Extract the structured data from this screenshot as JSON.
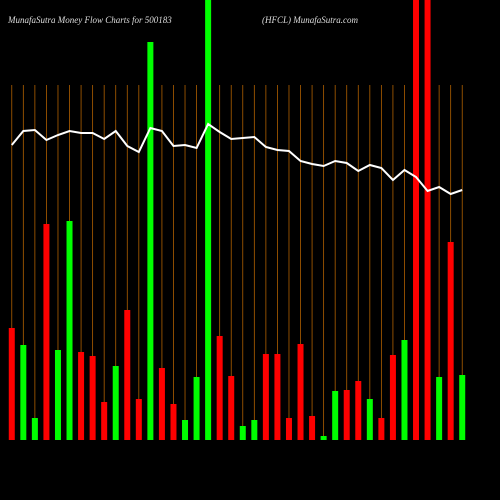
{
  "chart_data": {
    "type": "bar",
    "title": "MunafaSutra  Money Flow  Charts for 500183",
    "subtitle": "(HFCL) MunafaSutra.com",
    "categories": [
      null,
      null,
      null,
      null,
      null,
      null,
      null,
      null,
      null,
      null,
      null,
      null,
      null,
      null,
      null,
      null,
      null,
      null,
      null,
      null,
      null,
      null,
      null,
      null,
      null,
      null,
      null,
      null,
      null,
      null,
      null,
      null,
      null,
      null,
      null,
      null,
      null,
      null,
      null,
      null
    ],
    "series": [
      {
        "name": null,
        "values": [
          112,
          95,
          22,
          216,
          90,
          219,
          88,
          84,
          38,
          74,
          130,
          41,
          398,
          72,
          36,
          20,
          63,
          450,
          104,
          64,
          14,
          20,
          86,
          86,
          22,
          96,
          24,
          4,
          49,
          50,
          59,
          41,
          22,
          85,
          100,
          450,
          450,
          63,
          198,
          65
        ],
        "colors": [
          "#ff0000",
          "#00ff00",
          "#00ff00",
          "#ff0000",
          "#00ff00",
          "#00ff00",
          "#ff0000",
          "#ff0000",
          "#ff0000",
          "#00ff00",
          "#ff0000",
          "#ff0000",
          "#00ff00",
          "#ff0000",
          "#ff0000",
          "#00ff00",
          "#00ff00",
          "#00ff00",
          "#ff0000",
          "#ff0000",
          "#00ff00",
          "#00ff00",
          "#ff0000",
          "#ff0000",
          "#ff0000",
          "#ff0000",
          "#ff0000",
          "#00ff00",
          "#00ff00",
          "#ff0000",
          "#ff0000",
          "#00ff00",
          "#ff0000",
          "#ff0000",
          "#00ff00",
          "#ff0000",
          "#ff0000",
          "#00ff00",
          "#ff0000",
          "#00ff00"
        ]
      },
      {
        "name": null,
        "type": "line",
        "color": "#ffffff",
        "values": [
          295,
          309,
          310,
          300,
          305,
          309,
          307,
          307,
          301,
          309,
          294,
          288,
          312,
          309,
          294,
          295,
          292,
          316,
          308,
          301,
          302,
          303,
          293,
          290,
          289,
          279,
          276,
          274,
          279,
          277,
          269,
          275,
          272,
          260,
          270,
          263,
          249,
          253,
          246,
          250
        ]
      }
    ],
    "ylim": [
      0,
      440
    ],
    "grid_color": "#b06000"
  }
}
